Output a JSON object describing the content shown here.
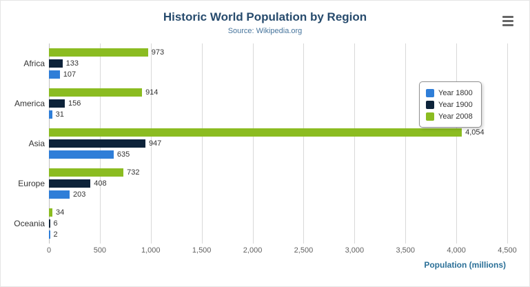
{
  "header": {
    "title": "Historic World Population by Region",
    "subtitle": "Source: Wikipedia.org",
    "menu_icon": "hamburger-icon"
  },
  "chart_data": {
    "type": "bar",
    "orientation": "horizontal",
    "title": "Historic World Population by Region",
    "subtitle": "Source: Wikipedia.org",
    "categories": [
      "Africa",
      "America",
      "Asia",
      "Europe",
      "Oceania"
    ],
    "series": [
      {
        "name": "Year 1800",
        "color": "#2f7ed8",
        "values": [
          107,
          31,
          635,
          203,
          2
        ]
      },
      {
        "name": "Year 1900",
        "color": "#0d233a",
        "values": [
          133,
          156,
          947,
          408,
          6
        ]
      },
      {
        "name": "Year 2008",
        "color": "#8bbc21",
        "values": [
          973,
          914,
          4054,
          732,
          34
        ]
      }
    ],
    "series_display_order_top_to_bottom": [
      "Year 2008",
      "Year 1900",
      "Year 1800"
    ],
    "xlabel": "Population (millions)",
    "ylabel": "",
    "xlim": [
      0,
      4500
    ],
    "xticks": [
      0,
      500,
      1000,
      1500,
      2000,
      2500,
      3000,
      3500,
      4000,
      4500
    ],
    "grid": true,
    "legend_position": "right",
    "data_labels": true,
    "colors": {
      "title": "#274b6d",
      "subtitle": "#46749c",
      "axis_title": "#2a6f97",
      "gridline": "#d8d8d8",
      "tick_label": "#606060"
    }
  }
}
